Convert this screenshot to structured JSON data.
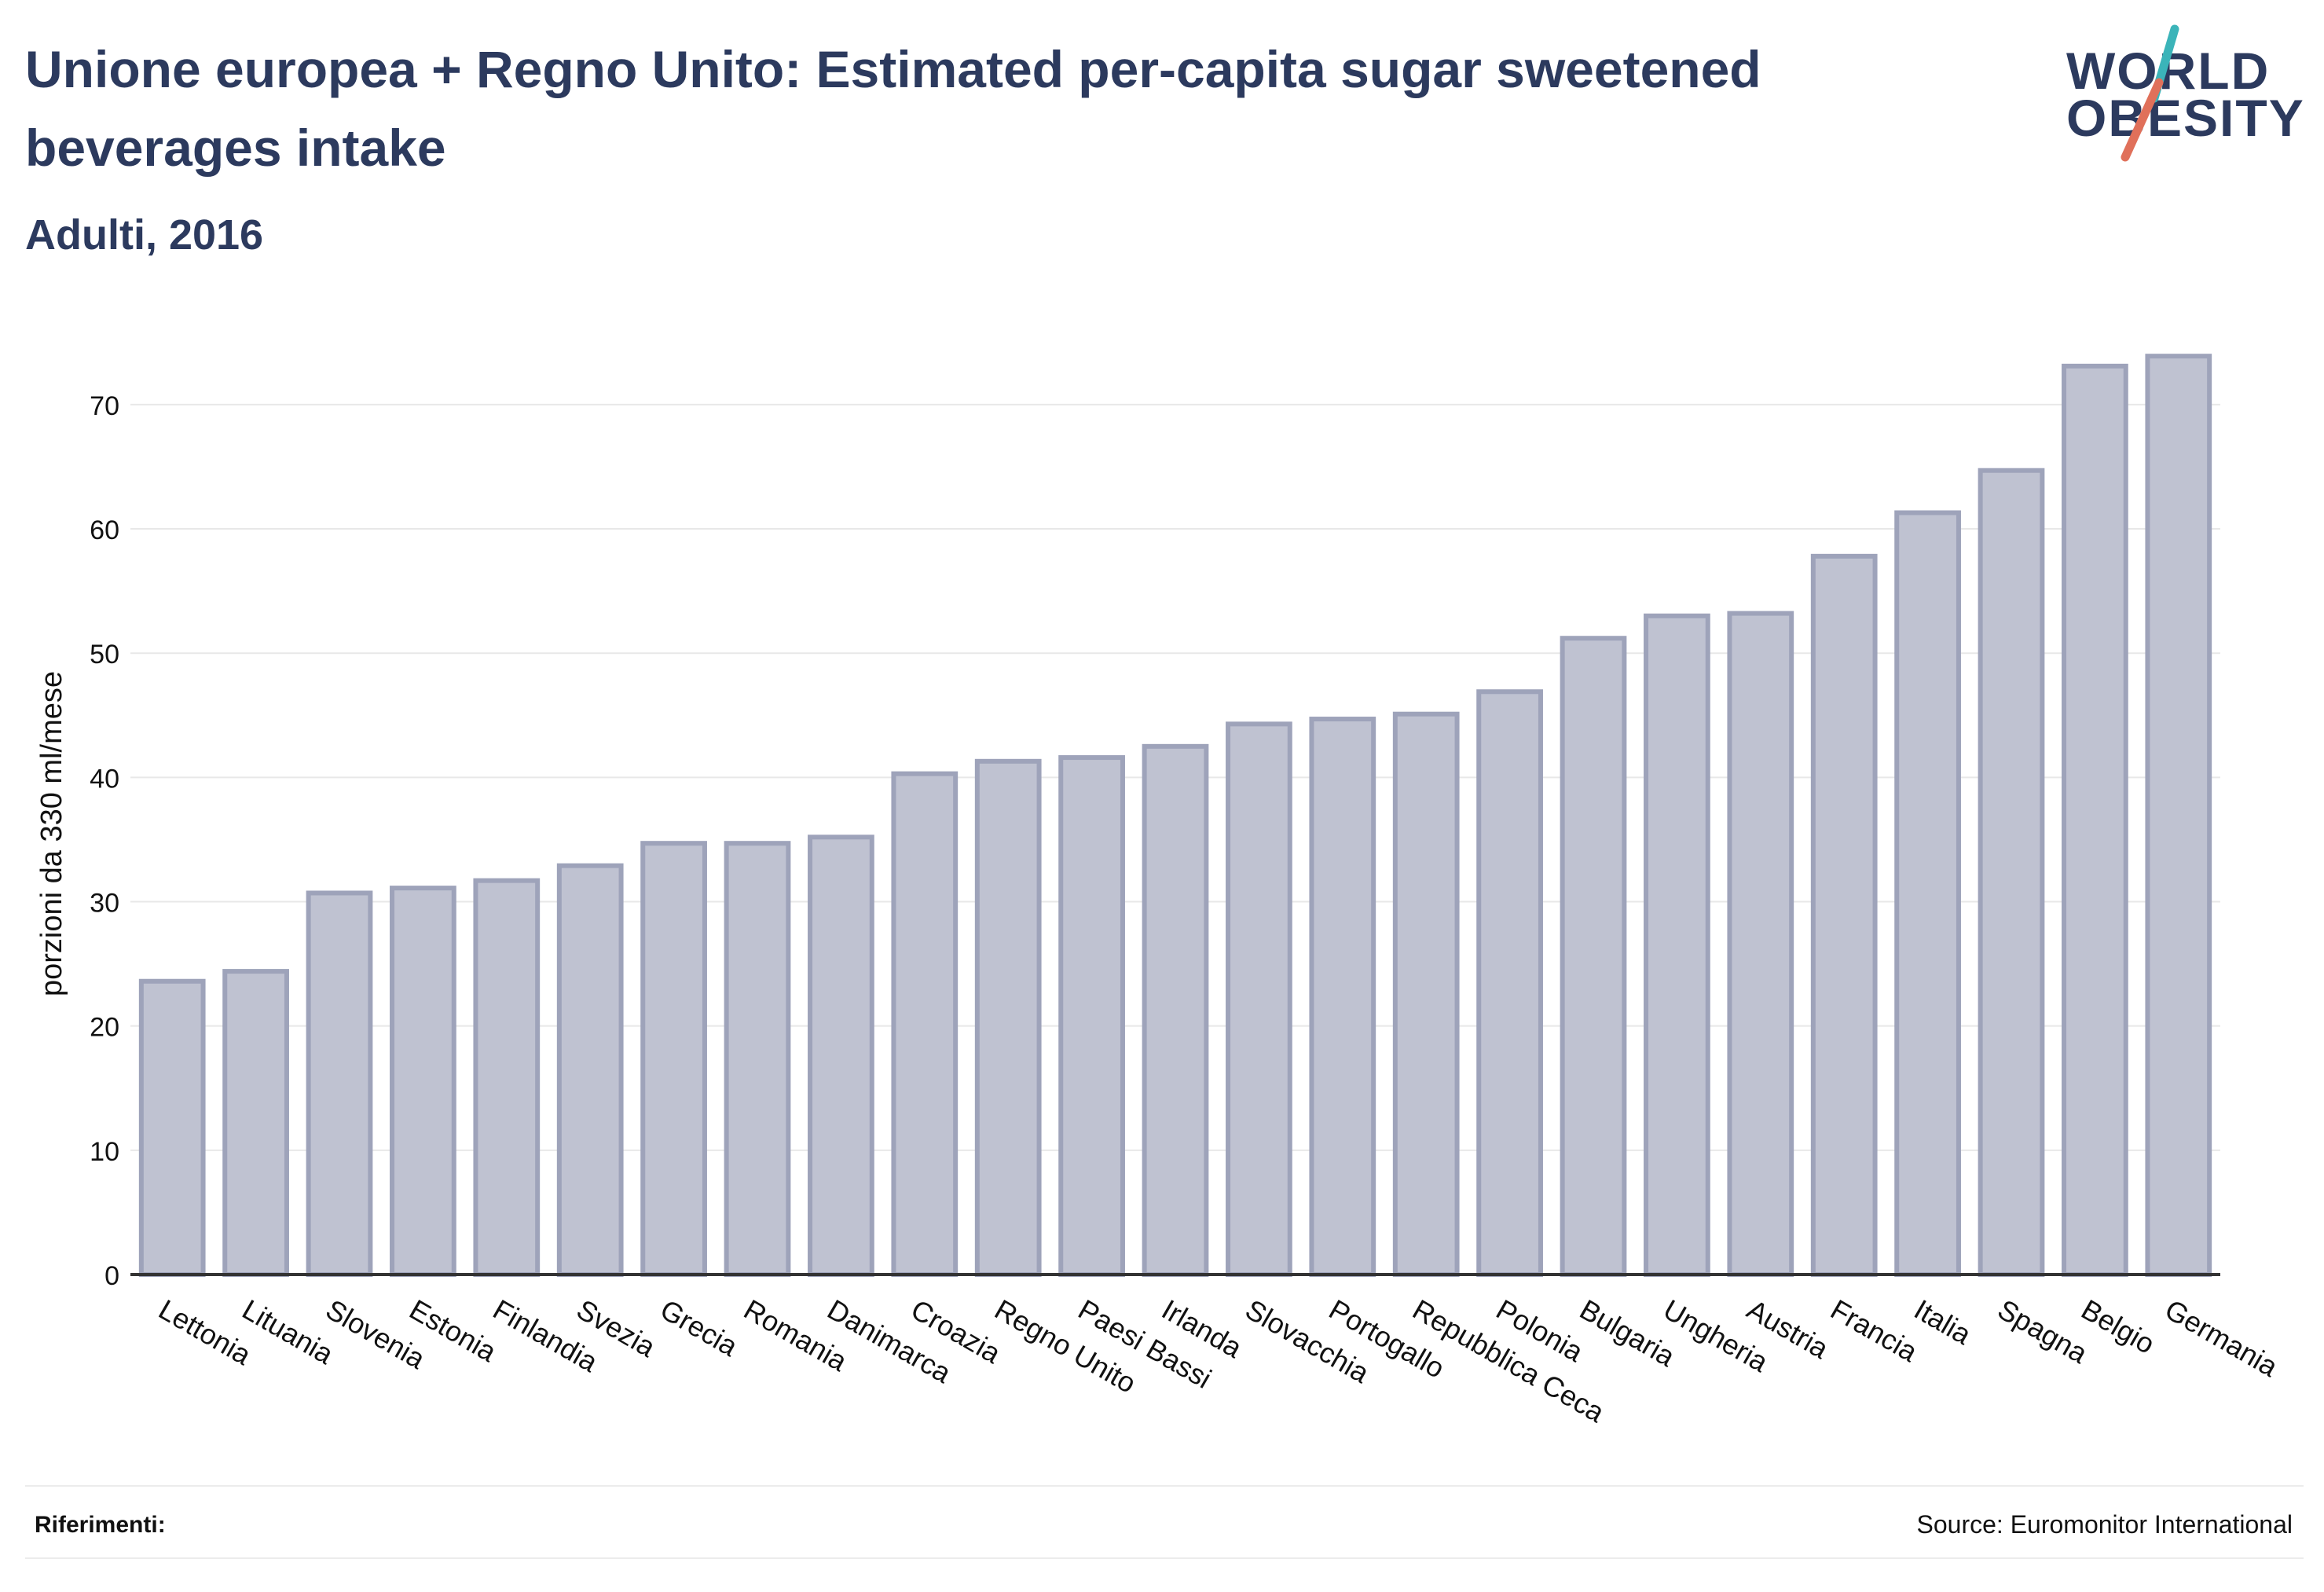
{
  "header": {
    "title": "Unione europea + Regno Unito: Estimated per-capita sugar sweetened beverages intake",
    "subtitle": "Adulti, 2016"
  },
  "logo": {
    "line1": "WORLD",
    "line2": "OBESITY",
    "accent_teal": "#3bb4b9",
    "accent_red": "#e0705a"
  },
  "footer": {
    "references_label": "Riferimenti:",
    "source": "Source: Euromonitor International"
  },
  "colors": {
    "bar_fill": "#bfc2d1",
    "bar_stroke": "#9ea3ba",
    "text": "#2c3a5e",
    "grid": "#e8e8e8",
    "axis": "#333333"
  },
  "chart_data": {
    "type": "bar",
    "ylabel": "porzioni da 330 ml/mese",
    "ylim": [
      0,
      76
    ],
    "yticks": [
      0,
      10,
      20,
      30,
      40,
      50,
      60,
      70
    ],
    "grid": true,
    "categories": [
      "Lettonia",
      "Lituania",
      "Slovenia",
      "Estonia",
      "Finlandia",
      "Svezia",
      "Grecia",
      "Romania",
      "Danimarca",
      "Croazia",
      "Regno Unito",
      "Paesi Bassi",
      "Irlanda",
      "Slovacchia",
      "Portogallo",
      "Repubblica Ceca",
      "Polonia",
      "Bulgaria",
      "Ungheria",
      "Austria",
      "Francia",
      "Italia",
      "Spagna",
      "Belgio",
      "Germania"
    ],
    "values": [
      23.6,
      24.4,
      30.7,
      31.1,
      31.7,
      32.9,
      34.7,
      34.7,
      35.2,
      40.3,
      41.3,
      41.6,
      42.5,
      44.3,
      44.7,
      45.1,
      46.9,
      51.2,
      53.0,
      53.2,
      57.8,
      61.3,
      64.7,
      73.1,
      73.9
    ]
  }
}
